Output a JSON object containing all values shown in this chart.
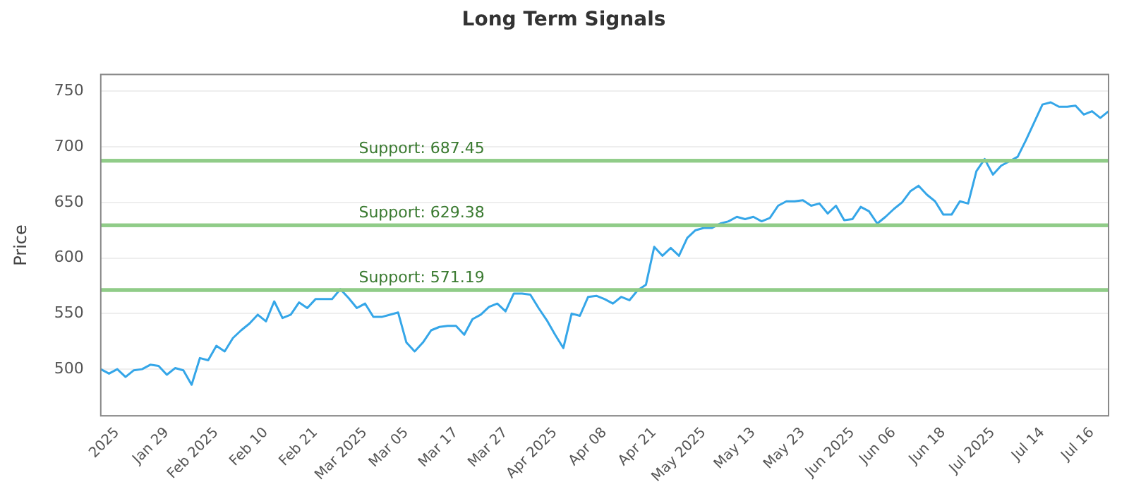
{
  "chart_data": {
    "type": "line",
    "title": "Long Term Signals",
    "ylabel": "Price",
    "categories": [
      null,
      null,
      "2025",
      null,
      null,
      null,
      null,
      null,
      "Jan 29",
      null,
      null,
      null,
      null,
      null,
      "Feb 2025",
      null,
      null,
      null,
      null,
      null,
      "Feb 10",
      null,
      null,
      null,
      null,
      null,
      "Feb 21",
      null,
      null,
      null,
      null,
      null,
      "Mar 2025",
      null,
      null,
      null,
      null,
      "Mar 05",
      null,
      null,
      null,
      null,
      null,
      "Mar 17",
      null,
      null,
      null,
      null,
      null,
      "Mar 27",
      null,
      null,
      null,
      null,
      null,
      "Apr 2025",
      null,
      null,
      null,
      null,
      null,
      "Apr 08",
      null,
      null,
      null,
      null,
      null,
      "Apr 21",
      null,
      null,
      null,
      null,
      null,
      "May 2025",
      null,
      null,
      null,
      null,
      null,
      "May 13",
      null,
      null,
      null,
      null,
      null,
      "May 23",
      null,
      null,
      null,
      null,
      null,
      "Jun 2025",
      null,
      null,
      null,
      null,
      "Jun 06",
      null,
      null,
      null,
      null,
      null,
      "Jun 18",
      null,
      null,
      null,
      null,
      null,
      "Jul 2025",
      null,
      null,
      null,
      null,
      null,
      "Jul 14",
      null,
      null,
      null,
      null,
      null,
      "Jul 16",
      null,
      null
    ],
    "series": [
      {
        "color": "#35a6e8",
        "values": [
          500,
          496,
          500,
          493,
          499,
          500,
          504,
          503,
          495,
          501,
          499,
          486,
          510,
          508,
          521,
          516,
          528,
          535,
          541,
          549,
          543,
          561,
          546,
          549,
          560,
          555,
          563,
          563,
          563,
          572,
          564,
          555,
          559,
          547,
          547,
          549,
          551,
          524,
          516,
          524,
          535,
          538,
          539,
          539,
          531,
          545,
          549,
          556,
          559,
          552,
          568,
          568,
          567,
          555,
          544,
          531,
          519,
          550,
          548,
          565,
          566,
          563,
          559,
          565,
          562,
          571,
          576,
          610,
          602,
          609,
          602,
          618,
          625,
          627,
          627,
          631,
          633,
          637,
          635,
          637,
          633,
          636,
          647,
          651,
          651,
          652,
          647,
          649,
          640,
          647,
          634,
          635,
          646,
          642,
          631,
          637,
          644,
          650,
          660,
          665,
          657,
          651,
          639,
          639,
          651,
          649,
          678,
          689,
          675,
          683,
          687,
          691,
          706,
          722,
          738,
          740,
          736,
          736,
          737,
          729,
          732,
          726,
          732
        ]
      }
    ],
    "ylim": [
      458,
      765
    ],
    "yticks": [
      500,
      550,
      600,
      650,
      700,
      750
    ],
    "grid": "y",
    "legend": false,
    "marker": "none",
    "line_style": "solid",
    "ref_lines": [
      {
        "axis": "y",
        "value": 687.45,
        "label": "Support: 687.45",
        "color": "#90cc88"
      },
      {
        "axis": "y",
        "value": 629.38,
        "label": "Support: 629.38",
        "color": "#90cc88"
      },
      {
        "axis": "y",
        "value": 571.19,
        "label": "Support: 571.19",
        "color": "#90cc88"
      }
    ]
  }
}
